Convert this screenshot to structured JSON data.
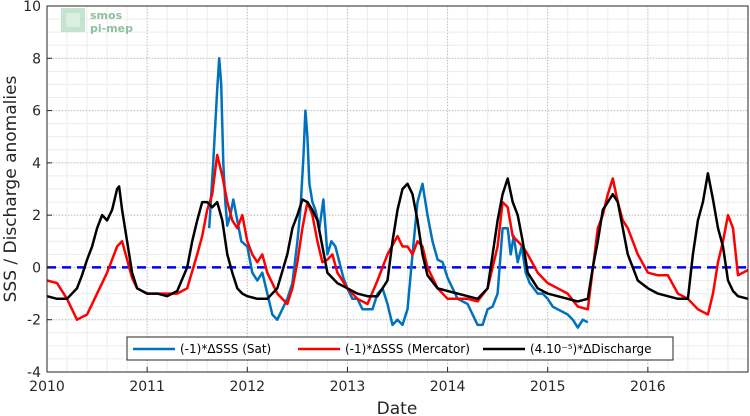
{
  "chart_data": {
    "type": "line",
    "xlabel": "Date",
    "ylabel": "SSS / Discharge anomalies",
    "xlim": [
      2010,
      2017
    ],
    "ylim": [
      -4,
      10
    ],
    "x_ticks": [
      "2010",
      "2011",
      "2012",
      "2013",
      "2014",
      "2015",
      "2016"
    ],
    "y_ticks": [
      "-4",
      "-2",
      "0",
      "2",
      "4",
      "6",
      "8",
      "10"
    ],
    "grid": true,
    "legend_position": "bottom-center",
    "logo_text": [
      "smos",
      "pi-mep"
    ],
    "zero_line": {
      "y": 0,
      "color": "#0000ff",
      "style": "dashed"
    },
    "series": [
      {
        "name": "(-1)*ΔSSS (Sat)",
        "color": "#0072bd",
        "x": [
          2011.62,
          2011.66,
          2011.7,
          2011.72,
          2011.74,
          2011.76,
          2011.78,
          2011.8,
          2011.83,
          2011.86,
          2011.9,
          2011.94,
          2012.0,
          2012.05,
          2012.1,
          2012.15,
          2012.2,
          2012.25,
          2012.3,
          2012.35,
          2012.4,
          2012.45,
          2012.5,
          2012.53,
          2012.56,
          2012.58,
          2012.6,
          2012.62,
          2012.65,
          2012.68,
          2012.72,
          2012.76,
          2012.8,
          2012.84,
          2012.88,
          2012.92,
          2012.96,
          2013.0,
          2013.05,
          2013.1,
          2013.15,
          2013.2,
          2013.25,
          2013.3,
          2013.35,
          2013.4,
          2013.45,
          2013.5,
          2013.55,
          2013.6,
          2013.65,
          2013.7,
          2013.75,
          2013.8,
          2013.85,
          2013.9,
          2013.95,
          2014.0,
          2014.05,
          2014.1,
          2014.15,
          2014.2,
          2014.25,
          2014.3,
          2014.35,
          2014.4,
          2014.45,
          2014.5,
          2014.55,
          2014.6,
          2014.63,
          2014.66,
          2014.7,
          2014.74,
          2014.78,
          2014.82,
          2014.86,
          2014.9,
          2014.95,
          2015.0,
          2015.05,
          2015.1,
          2015.15,
          2015.2,
          2015.25,
          2015.3,
          2015.35,
          2015.4
        ],
        "y": [
          1.5,
          4.0,
          6.8,
          8.0,
          7.0,
          4.0,
          2.5,
          1.6,
          2.0,
          2.6,
          1.8,
          1.0,
          0.8,
          -0.2,
          -0.5,
          -0.2,
          -1.0,
          -1.8,
          -2.0,
          -1.6,
          -1.2,
          -0.6,
          1.0,
          2.2,
          4.2,
          6.0,
          5.0,
          3.2,
          2.5,
          2.2,
          1.5,
          2.6,
          0.5,
          1.0,
          0.8,
          0.2,
          -0.4,
          -0.8,
          -1.2,
          -1.2,
          -1.6,
          -1.6,
          -1.6,
          -1.0,
          -0.8,
          -1.4,
          -2.2,
          -2.0,
          -2.2,
          -1.6,
          0.5,
          2.5,
          3.2,
          2.0,
          1.0,
          0.3,
          0.2,
          -0.4,
          -0.8,
          -1.2,
          -1.3,
          -1.4,
          -1.8,
          -2.2,
          -2.2,
          -1.6,
          -1.5,
          -1.0,
          1.5,
          1.5,
          0.5,
          1.2,
          0.2,
          0.8,
          -0.2,
          -0.6,
          -0.8,
          -1.0,
          -1.0,
          -1.2,
          -1.5,
          -1.6,
          -1.7,
          -1.8,
          -2.0,
          -2.3,
          -2.0,
          -2.1
        ]
      },
      {
        "name": "(-1)*ΔSSS (Mercator)",
        "color": "#ff0000",
        "x": [
          2010.0,
          2010.1,
          2010.2,
          2010.3,
          2010.4,
          2010.5,
          2010.6,
          2010.7,
          2010.75,
          2010.8,
          2010.85,
          2010.9,
          2011.0,
          2011.1,
          2011.2,
          2011.3,
          2011.4,
          2011.5,
          2011.55,
          2011.6,
          2011.65,
          2011.7,
          2011.75,
          2011.8,
          2011.85,
          2011.9,
          2011.95,
          2012.0,
          2012.05,
          2012.1,
          2012.15,
          2012.2,
          2012.3,
          2012.4,
          2012.45,
          2012.5,
          2012.55,
          2012.6,
          2012.65,
          2012.7,
          2012.75,
          2012.8,
          2012.85,
          2012.9,
          2013.0,
          2013.1,
          2013.2,
          2013.3,
          2013.4,
          2013.5,
          2013.55,
          2013.6,
          2013.65,
          2013.7,
          2013.75,
          2013.8,
          2013.9,
          2014.0,
          2014.1,
          2014.2,
          2014.3,
          2014.4,
          2014.5,
          2014.55,
          2014.6,
          2014.65,
          2014.7,
          2014.75,
          2014.8,
          2014.9,
          2015.0,
          2015.1,
          2015.2,
          2015.3,
          2015.4,
          2015.5,
          2015.55,
          2015.6,
          2015.65,
          2015.7,
          2015.75,
          2015.8,
          2015.9,
          2016.0,
          2016.1,
          2016.2,
          2016.3,
          2016.4,
          2016.5,
          2016.6,
          2016.65,
          2016.7,
          2016.75,
          2016.8,
          2016.85,
          2016.9,
          2017.0
        ],
        "y": [
          -0.5,
          -0.6,
          -1.2,
          -2.0,
          -1.8,
          -1.0,
          -0.2,
          0.8,
          1.0,
          0.3,
          -0.4,
          -0.8,
          -1.0,
          -1.0,
          -1.0,
          -1.0,
          -0.8,
          0.5,
          1.2,
          2.2,
          2.8,
          4.3,
          3.5,
          2.5,
          1.8,
          1.5,
          2.0,
          1.0,
          0.5,
          0.2,
          0.5,
          -0.2,
          -1.0,
          -1.4,
          -0.8,
          0.2,
          1.5,
          2.5,
          2.0,
          1.0,
          0.2,
          0.3,
          0.5,
          -0.2,
          -0.8,
          -1.2,
          -1.4,
          -0.5,
          0.5,
          1.2,
          0.8,
          0.8,
          0.5,
          1.0,
          0.8,
          0.0,
          -0.8,
          -1.2,
          -1.2,
          -1.2,
          -1.3,
          -0.8,
          0.8,
          2.5,
          2.3,
          1.2,
          1.0,
          0.8,
          0.5,
          -0.2,
          -0.6,
          -0.8,
          -1.0,
          -1.5,
          -1.6,
          1.5,
          2.0,
          2.8,
          3.4,
          2.5,
          1.8,
          1.5,
          0.5,
          -0.2,
          -0.3,
          -0.3,
          -1.0,
          -1.2,
          -1.6,
          -1.8,
          -1.0,
          0.2,
          1.0,
          2.0,
          1.5,
          -0.3,
          -0.1
        ]
      },
      {
        "name": "(4.10⁻⁵)*ΔDischarge",
        "color": "#000000",
        "x": [
          2010.0,
          2010.1,
          2010.2,
          2010.3,
          2010.35,
          2010.4,
          2010.45,
          2010.5,
          2010.55,
          2010.6,
          2010.65,
          2010.7,
          2010.72,
          2010.75,
          2010.8,
          2010.85,
          2010.9,
          2011.0,
          2011.1,
          2011.2,
          2011.3,
          2011.4,
          2011.45,
          2011.5,
          2011.55,
          2011.6,
          2011.65,
          2011.7,
          2011.75,
          2011.8,
          2011.85,
          2011.9,
          2011.95,
          2012.0,
          2012.1,
          2012.2,
          2012.3,
          2012.4,
          2012.45,
          2012.5,
          2012.55,
          2012.6,
          2012.65,
          2012.7,
          2012.75,
          2012.8,
          2012.9,
          2013.0,
          2013.1,
          2013.2,
          2013.3,
          2013.4,
          2013.45,
          2013.5,
          2013.55,
          2013.6,
          2013.65,
          2013.7,
          2013.75,
          2013.8,
          2013.9,
          2014.0,
          2014.1,
          2014.2,
          2014.3,
          2014.4,
          2014.45,
          2014.5,
          2014.55,
          2014.6,
          2014.65,
          2014.7,
          2014.75,
          2014.8,
          2014.9,
          2015.0,
          2015.1,
          2015.2,
          2015.3,
          2015.4,
          2015.45,
          2015.5,
          2015.55,
          2015.6,
          2015.65,
          2015.7,
          2015.75,
          2015.8,
          2015.9,
          2016.0,
          2016.1,
          2016.2,
          2016.3,
          2016.4,
          2016.45,
          2016.5,
          2016.55,
          2016.6,
          2016.65,
          2016.7,
          2016.75,
          2016.8,
          2016.85,
          2016.9,
          2017.0
        ],
        "y": [
          -1.1,
          -1.2,
          -1.2,
          -0.8,
          -0.3,
          0.3,
          0.8,
          1.5,
          2.0,
          1.8,
          2.2,
          3.0,
          3.1,
          2.2,
          1.0,
          -0.2,
          -0.8,
          -1.0,
          -1.0,
          -1.1,
          -0.9,
          0.0,
          1.0,
          1.8,
          2.5,
          2.5,
          2.3,
          2.5,
          1.8,
          0.5,
          -0.2,
          -0.8,
          -1.0,
          -1.1,
          -1.2,
          -1.2,
          -0.8,
          0.5,
          1.5,
          2.0,
          2.6,
          2.5,
          2.2,
          1.8,
          0.8,
          -0.2,
          -0.6,
          -0.8,
          -1.0,
          -1.1,
          -1.1,
          -0.5,
          1.0,
          2.2,
          3.0,
          3.2,
          2.8,
          1.8,
          0.5,
          -0.3,
          -0.8,
          -0.9,
          -1.0,
          -1.1,
          -1.2,
          -0.8,
          0.5,
          1.8,
          2.8,
          3.4,
          2.5,
          2.0,
          1.0,
          -0.2,
          -0.8,
          -1.0,
          -1.1,
          -1.2,
          -1.3,
          -1.2,
          0.0,
          1.0,
          2.2,
          2.5,
          2.8,
          2.5,
          1.5,
          0.5,
          -0.5,
          -0.8,
          -1.0,
          -1.1,
          -1.2,
          -1.2,
          0.5,
          1.8,
          2.5,
          3.6,
          2.6,
          1.5,
          0.8,
          -0.5,
          -0.9,
          -1.1,
          -1.2
        ]
      }
    ]
  }
}
